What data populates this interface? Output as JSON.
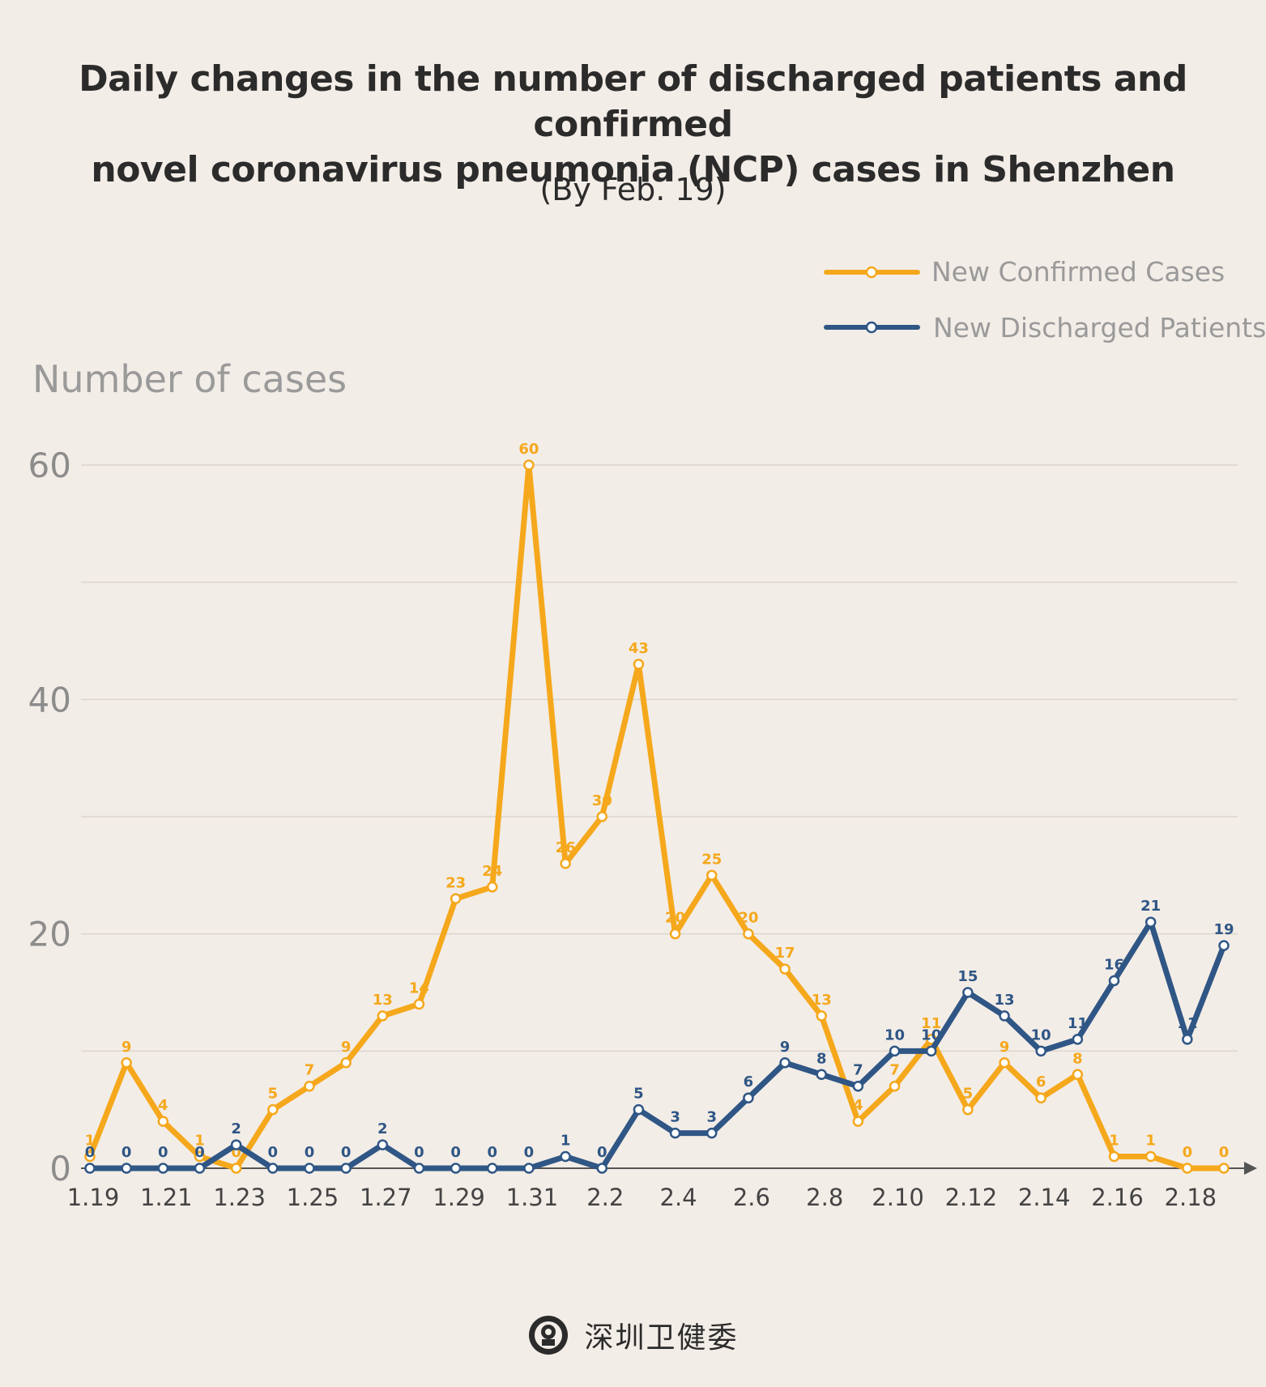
{
  "header": {
    "title_lines": [
      "Daily changes in the number of discharged patients and confirmed",
      "novel coronavirus pneumonia (NCP) cases in Shenzhen"
    ],
    "subtitle": "(By Feb. 19)"
  },
  "colors": {
    "confirmed": "#f5a81c",
    "discharged": "#2f5685",
    "grid": "#dcd5ce",
    "axis_text": "#8c8c8c",
    "background": "#f3ede7"
  },
  "chart_data": {
    "type": "line",
    "ylabel": "Number of cases",
    "xlabel": "",
    "ylim": [
      0,
      60
    ],
    "yticks": [
      0,
      20,
      40,
      60
    ],
    "grid": true,
    "legend_position": "top-right",
    "x": [
      "1.19",
      "1.20",
      "1.21",
      "1.22",
      "1.23",
      "1.24",
      "1.25",
      "1.26",
      "1.27",
      "1.28",
      "1.29",
      "1.30",
      "1.31",
      "2.1",
      "2.2",
      "2.3",
      "2.4",
      "2.5",
      "2.6",
      "2.7",
      "2.8",
      "2.9",
      "2.10",
      "2.11",
      "2.12",
      "2.13",
      "2.14",
      "2.15",
      "2.16",
      "2.17",
      "2.18",
      "2.19"
    ],
    "xtick_labels": [
      "1.19",
      "1.21",
      "1.23",
      "1.25",
      "1.27",
      "1.29",
      "1.31",
      "2.2",
      "2.4",
      "2.6",
      "2.8",
      "2.10",
      "2.12",
      "2.14",
      "2.16",
      "2.18"
    ],
    "series": [
      {
        "name": "New Confirmed Cases",
        "values": [
          1,
          9,
          4,
          1,
          0,
          5,
          7,
          9,
          13,
          14,
          23,
          24,
          60,
          26,
          30,
          43,
          20,
          25,
          20,
          17,
          13,
          4,
          7,
          11,
          5,
          9,
          6,
          8,
          1,
          1,
          0,
          0
        ]
      },
      {
        "name": "New Discharged Patients",
        "values": [
          0,
          0,
          0,
          0,
          2,
          0,
          0,
          0,
          2,
          0,
          0,
          0,
          0,
          1,
          0,
          5,
          3,
          3,
          6,
          9,
          8,
          7,
          10,
          10,
          15,
          13,
          10,
          11,
          16,
          21,
          11,
          19
        ]
      }
    ]
  },
  "footer": {
    "text": "深圳卫健委",
    "logo_icon": "health-commission-logo-icon"
  }
}
